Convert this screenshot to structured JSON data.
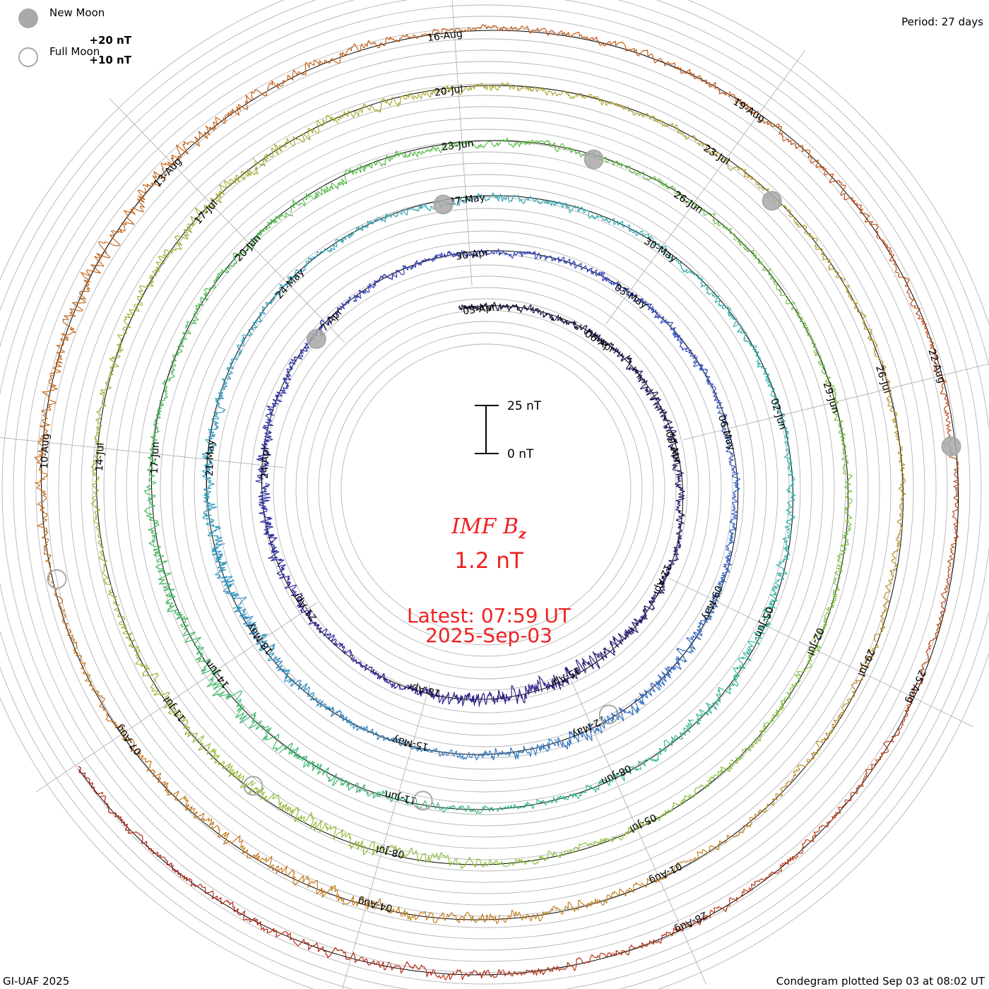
{
  "legend": {
    "new_moon": "New Moon",
    "full_moon": "Full Moon"
  },
  "period": "Period: 27 days",
  "center": {
    "parameter": "IMF B",
    "parameter_sub": "z",
    "value": "1.2 nT",
    "latest_time": "Latest: 07:59 UT",
    "latest_date": "2025-Sep-03"
  },
  "scale_bar": {
    "top_label": "25 nT",
    "bottom_label": "0 nT",
    "span_nT": 25
  },
  "footer": {
    "credit": "GI-UAF 2025",
    "plotted": "Condegram plotted Sep 03 at 08:02 UT"
  },
  "colors": {
    "background": "#ffffff",
    "grid": "#b4b4b4",
    "accent_text": "#ee2222",
    "moon_marker": "#a9a9a9",
    "series": [
      "#141034",
      "#2a1e90",
      "#3048c0",
      "#2e94be",
      "#30b4a6",
      "#44b848",
      "#86c23a",
      "#a8a830",
      "#c47818",
      "#c05010",
      "#b01810"
    ]
  },
  "chart_data": {
    "type": "condegram",
    "title": "IMF Bz",
    "units": "nT",
    "period_days": 27,
    "start_date": "2025-04-03",
    "end_date": "2025-09-03",
    "latest_value": 1.2,
    "ring_labels": [
      "+20 nT",
      "+10 nT"
    ],
    "rings": [
      {
        "start": "03-Apr",
        "labels": [
          "03-Apr",
          "06-Apr",
          "09-Apr",
          "12-Apr",
          "15-Apr",
          "18-Apr",
          "21-Apr",
          "24-Apr",
          "27-Apr"
        ]
      },
      {
        "start": "30-Apr",
        "labels": [
          "30-Apr",
          "03-May",
          "06-May",
          "09-May",
          "12-May",
          "15-May",
          "18-May",
          "21-May",
          "24-May"
        ]
      },
      {
        "start": "27-May",
        "labels": [
          "27-May",
          "30-May",
          "02-Jun",
          "05-Jun",
          "08-Jun",
          "11-Jun",
          "14-Jun",
          "17-Jun",
          "20-Jun"
        ]
      },
      {
        "start": "23-Jun",
        "labels": [
          "23-Jun",
          "26-Jun",
          "29-Jun",
          "02-Jul",
          "05-Jul",
          "08-Jul",
          "11-Jul",
          "14-Jul",
          "17-Jul"
        ]
      },
      {
        "start": "20-Jul",
        "labels": [
          "20-Jul",
          "23-Jul",
          "26-Jul",
          "29-Jul",
          "01-Aug",
          "04-Aug",
          "07-Aug",
          "10-Aug",
          "13-Aug"
        ]
      },
      {
        "start": "16-Aug",
        "labels": [
          "16-Aug",
          "19-Aug",
          "22-Aug",
          "25-Aug",
          "28-Aug"
        ]
      }
    ],
    "new_moons": [
      "2025-04-27",
      "2025-05-27",
      "2025-06-25",
      "2025-07-24",
      "2025-08-23"
    ],
    "full_moons": [
      "2025-05-12",
      "2025-06-11",
      "2025-07-10",
      "2025-08-09"
    ]
  }
}
